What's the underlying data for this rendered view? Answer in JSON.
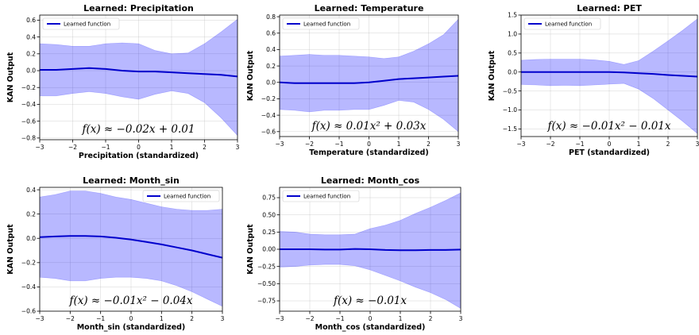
{
  "chart_data": [
    {
      "type": "line",
      "title": "Learned: Precipitation",
      "xlabel": "Precipitation (standardized)",
      "ylabel": "KAN Output",
      "xlim": [
        -3,
        3
      ],
      "ylim": [
        -0.82,
        0.66
      ],
      "xticks": [
        -3,
        -2,
        -1,
        0,
        1,
        2,
        3
      ],
      "yticks": [
        -0.8,
        -0.6,
        -0.4,
        -0.2,
        0.0,
        0.2,
        0.4,
        0.6
      ],
      "ytick_labels": [
        "−0.8",
        "−0.6",
        "−0.4",
        "−0.2",
        "0.0",
        "0.2",
        "0.4",
        "0.6"
      ],
      "legend": {
        "label": "Learned function",
        "position": "upper-left"
      },
      "formula": "f(x) ≈ −0.02x + 0.01",
      "grid": true,
      "x": [
        -3,
        -2.5,
        -2,
        -1.5,
        -1,
        -0.5,
        0,
        0.5,
        1,
        1.5,
        2,
        2.5,
        3
      ],
      "series": [
        {
          "name": "Learned function",
          "values": [
            0.01,
            0.01,
            0.02,
            0.03,
            0.02,
            0.0,
            -0.01,
            -0.01,
            -0.02,
            -0.03,
            -0.04,
            -0.05,
            -0.07
          ]
        }
      ],
      "band_upper": [
        0.32,
        0.31,
        0.29,
        0.29,
        0.32,
        0.33,
        0.32,
        0.24,
        0.2,
        0.21,
        0.32,
        0.46,
        0.61
      ],
      "band_lower": [
        -0.3,
        -0.3,
        -0.27,
        -0.25,
        -0.27,
        -0.31,
        -0.34,
        -0.28,
        -0.24,
        -0.27,
        -0.38,
        -0.56,
        -0.77
      ]
    },
    {
      "type": "line",
      "title": "Learned: Temperature",
      "xlabel": "Temperature (standardized)",
      "ylabel": "KAN Output",
      "xlim": [
        -3,
        3
      ],
      "ylim": [
        -0.66,
        0.82
      ],
      "xticks": [
        -3,
        -2,
        -1,
        0,
        1,
        2,
        3
      ],
      "yticks": [
        -0.6,
        -0.4,
        -0.2,
        0.0,
        0.2,
        0.4,
        0.6,
        0.8
      ],
      "ytick_labels": [
        "−0.6",
        "−0.4",
        "−0.2",
        "0.0",
        "0.2",
        "0.4",
        "0.6",
        "0.8"
      ],
      "legend": {
        "label": "Learned function",
        "position": "upper-left"
      },
      "formula": "f(x) ≈ 0.01x² + 0.03x",
      "grid": true,
      "x": [
        -3,
        -2.5,
        -2,
        -1.5,
        -1,
        -0.5,
        0,
        0.5,
        1,
        1.5,
        2,
        2.5,
        3
      ],
      "series": [
        {
          "name": "Learned function",
          "values": [
            0.0,
            -0.01,
            -0.01,
            -0.01,
            -0.01,
            -0.01,
            0.0,
            0.02,
            0.04,
            0.05,
            0.06,
            0.07,
            0.08
          ]
        }
      ],
      "band_upper": [
        0.32,
        0.33,
        0.34,
        0.33,
        0.33,
        0.32,
        0.31,
        0.29,
        0.31,
        0.38,
        0.47,
        0.58,
        0.77
      ],
      "band_lower": [
        -0.33,
        -0.34,
        -0.36,
        -0.34,
        -0.34,
        -0.33,
        -0.33,
        -0.28,
        -0.22,
        -0.24,
        -0.33,
        -0.45,
        -0.6
      ]
    },
    {
      "type": "line",
      "title": "Learned: PET",
      "xlabel": "PET (standardized)",
      "ylabel": "KAN Output",
      "xlim": [
        -3,
        3
      ],
      "ylim": [
        -1.7,
        1.5
      ],
      "xticks": [
        -3,
        -2,
        -1,
        0,
        1,
        2,
        3
      ],
      "yticks": [
        -1.5,
        -1.0,
        -0.5,
        0.0,
        0.5,
        1.0,
        1.5
      ],
      "ytick_labels": [
        "−1.5",
        "−1.0",
        "−0.5",
        "0.0",
        "0.5",
        "1.0",
        "1.5"
      ],
      "legend": {
        "label": "Learned function",
        "position": "upper-left"
      },
      "formula": "f(x) ≈ −0.01x² − 0.01x",
      "grid": true,
      "x": [
        -3,
        -2.5,
        -2,
        -1.5,
        -1,
        -0.5,
        0,
        0.5,
        1,
        1.5,
        2,
        2.5,
        3
      ],
      "series": [
        {
          "name": "Learned function",
          "values": [
            0.0,
            0.0,
            0.0,
            0.0,
            0.0,
            0.0,
            0.0,
            -0.01,
            -0.03,
            -0.05,
            -0.08,
            -0.1,
            -0.12
          ]
        }
      ],
      "band_upper": [
        0.31,
        0.33,
        0.34,
        0.34,
        0.34,
        0.32,
        0.28,
        0.2,
        0.3,
        0.55,
        0.82,
        1.1,
        1.4
      ],
      "band_lower": [
        -0.33,
        -0.34,
        -0.36,
        -0.35,
        -0.36,
        -0.34,
        -0.32,
        -0.3,
        -0.45,
        -0.7,
        -1.0,
        -1.3,
        -1.62
      ]
    },
    {
      "type": "line",
      "title": "Learned: Month_sin",
      "xlabel": "Month_sin (standardized)",
      "ylabel": "KAN Output",
      "xlim": [
        -3,
        3
      ],
      "ylim": [
        -0.6,
        0.42
      ],
      "xticks": [
        -3,
        -2,
        -1,
        0,
        1,
        2,
        3
      ],
      "yticks": [
        -0.6,
        -0.4,
        -0.2,
        0.0,
        0.2,
        0.4
      ],
      "ytick_labels": [
        "−0.6",
        "−0.4",
        "−0.2",
        "0.0",
        "0.2",
        "0.4"
      ],
      "legend": {
        "label": "Learned function",
        "position": "upper-right"
      },
      "formula": "f(x) ≈ −0.01x² − 0.04x",
      "grid": true,
      "x": [
        -3,
        -2.5,
        -2,
        -1.5,
        -1,
        -0.5,
        0,
        0.5,
        1,
        1.5,
        2,
        2.5,
        3
      ],
      "series": [
        {
          "name": "Learned function",
          "values": [
            0.01,
            0.015,
            0.02,
            0.02,
            0.015,
            0.005,
            -0.01,
            -0.03,
            -0.05,
            -0.075,
            -0.1,
            -0.13,
            -0.16
          ]
        }
      ],
      "band_upper": [
        0.34,
        0.36,
        0.39,
        0.39,
        0.37,
        0.34,
        0.32,
        0.29,
        0.26,
        0.24,
        0.23,
        0.23,
        0.24
      ],
      "band_lower": [
        -0.32,
        -0.33,
        -0.35,
        -0.35,
        -0.33,
        -0.32,
        -0.32,
        -0.33,
        -0.35,
        -0.39,
        -0.44,
        -0.5,
        -0.56
      ]
    },
    {
      "type": "line",
      "title": "Learned: Month_cos",
      "xlabel": "Month_cos (standardized)",
      "ylabel": "KAN Output",
      "xlim": [
        -3,
        3
      ],
      "ylim": [
        -0.9,
        0.9
      ],
      "xticks": [
        -3,
        -2,
        -1,
        0,
        1,
        2,
        3
      ],
      "yticks": [
        -0.75,
        -0.5,
        -0.25,
        0.0,
        0.25,
        0.5,
        0.75
      ],
      "ytick_labels": [
        "−0.75",
        "−0.50",
        "−0.25",
        "0.00",
        "0.25",
        "0.50",
        "0.75"
      ],
      "legend": {
        "label": "Learned function",
        "position": "upper-left"
      },
      "formula": "f(x) ≈ −0.01x",
      "grid": true,
      "x": [
        -3,
        -2.5,
        -2,
        -1.5,
        -1,
        -0.5,
        0,
        0.5,
        1,
        1.5,
        2,
        2.5,
        3
      ],
      "series": [
        {
          "name": "Learned function",
          "values": [
            0.0,
            0.0,
            0.0,
            -0.005,
            -0.005,
            0.005,
            0.0,
            -0.01,
            -0.015,
            -0.015,
            -0.01,
            -0.01,
            -0.005
          ]
        }
      ],
      "band_upper": [
        0.26,
        0.25,
        0.22,
        0.21,
        0.21,
        0.22,
        0.3,
        0.35,
        0.42,
        0.52,
        0.61,
        0.71,
        0.82
      ],
      "band_lower": [
        -0.26,
        -0.25,
        -0.23,
        -0.22,
        -0.22,
        -0.24,
        -0.3,
        -0.38,
        -0.46,
        -0.55,
        -0.63,
        -0.73,
        -0.86
      ]
    }
  ]
}
